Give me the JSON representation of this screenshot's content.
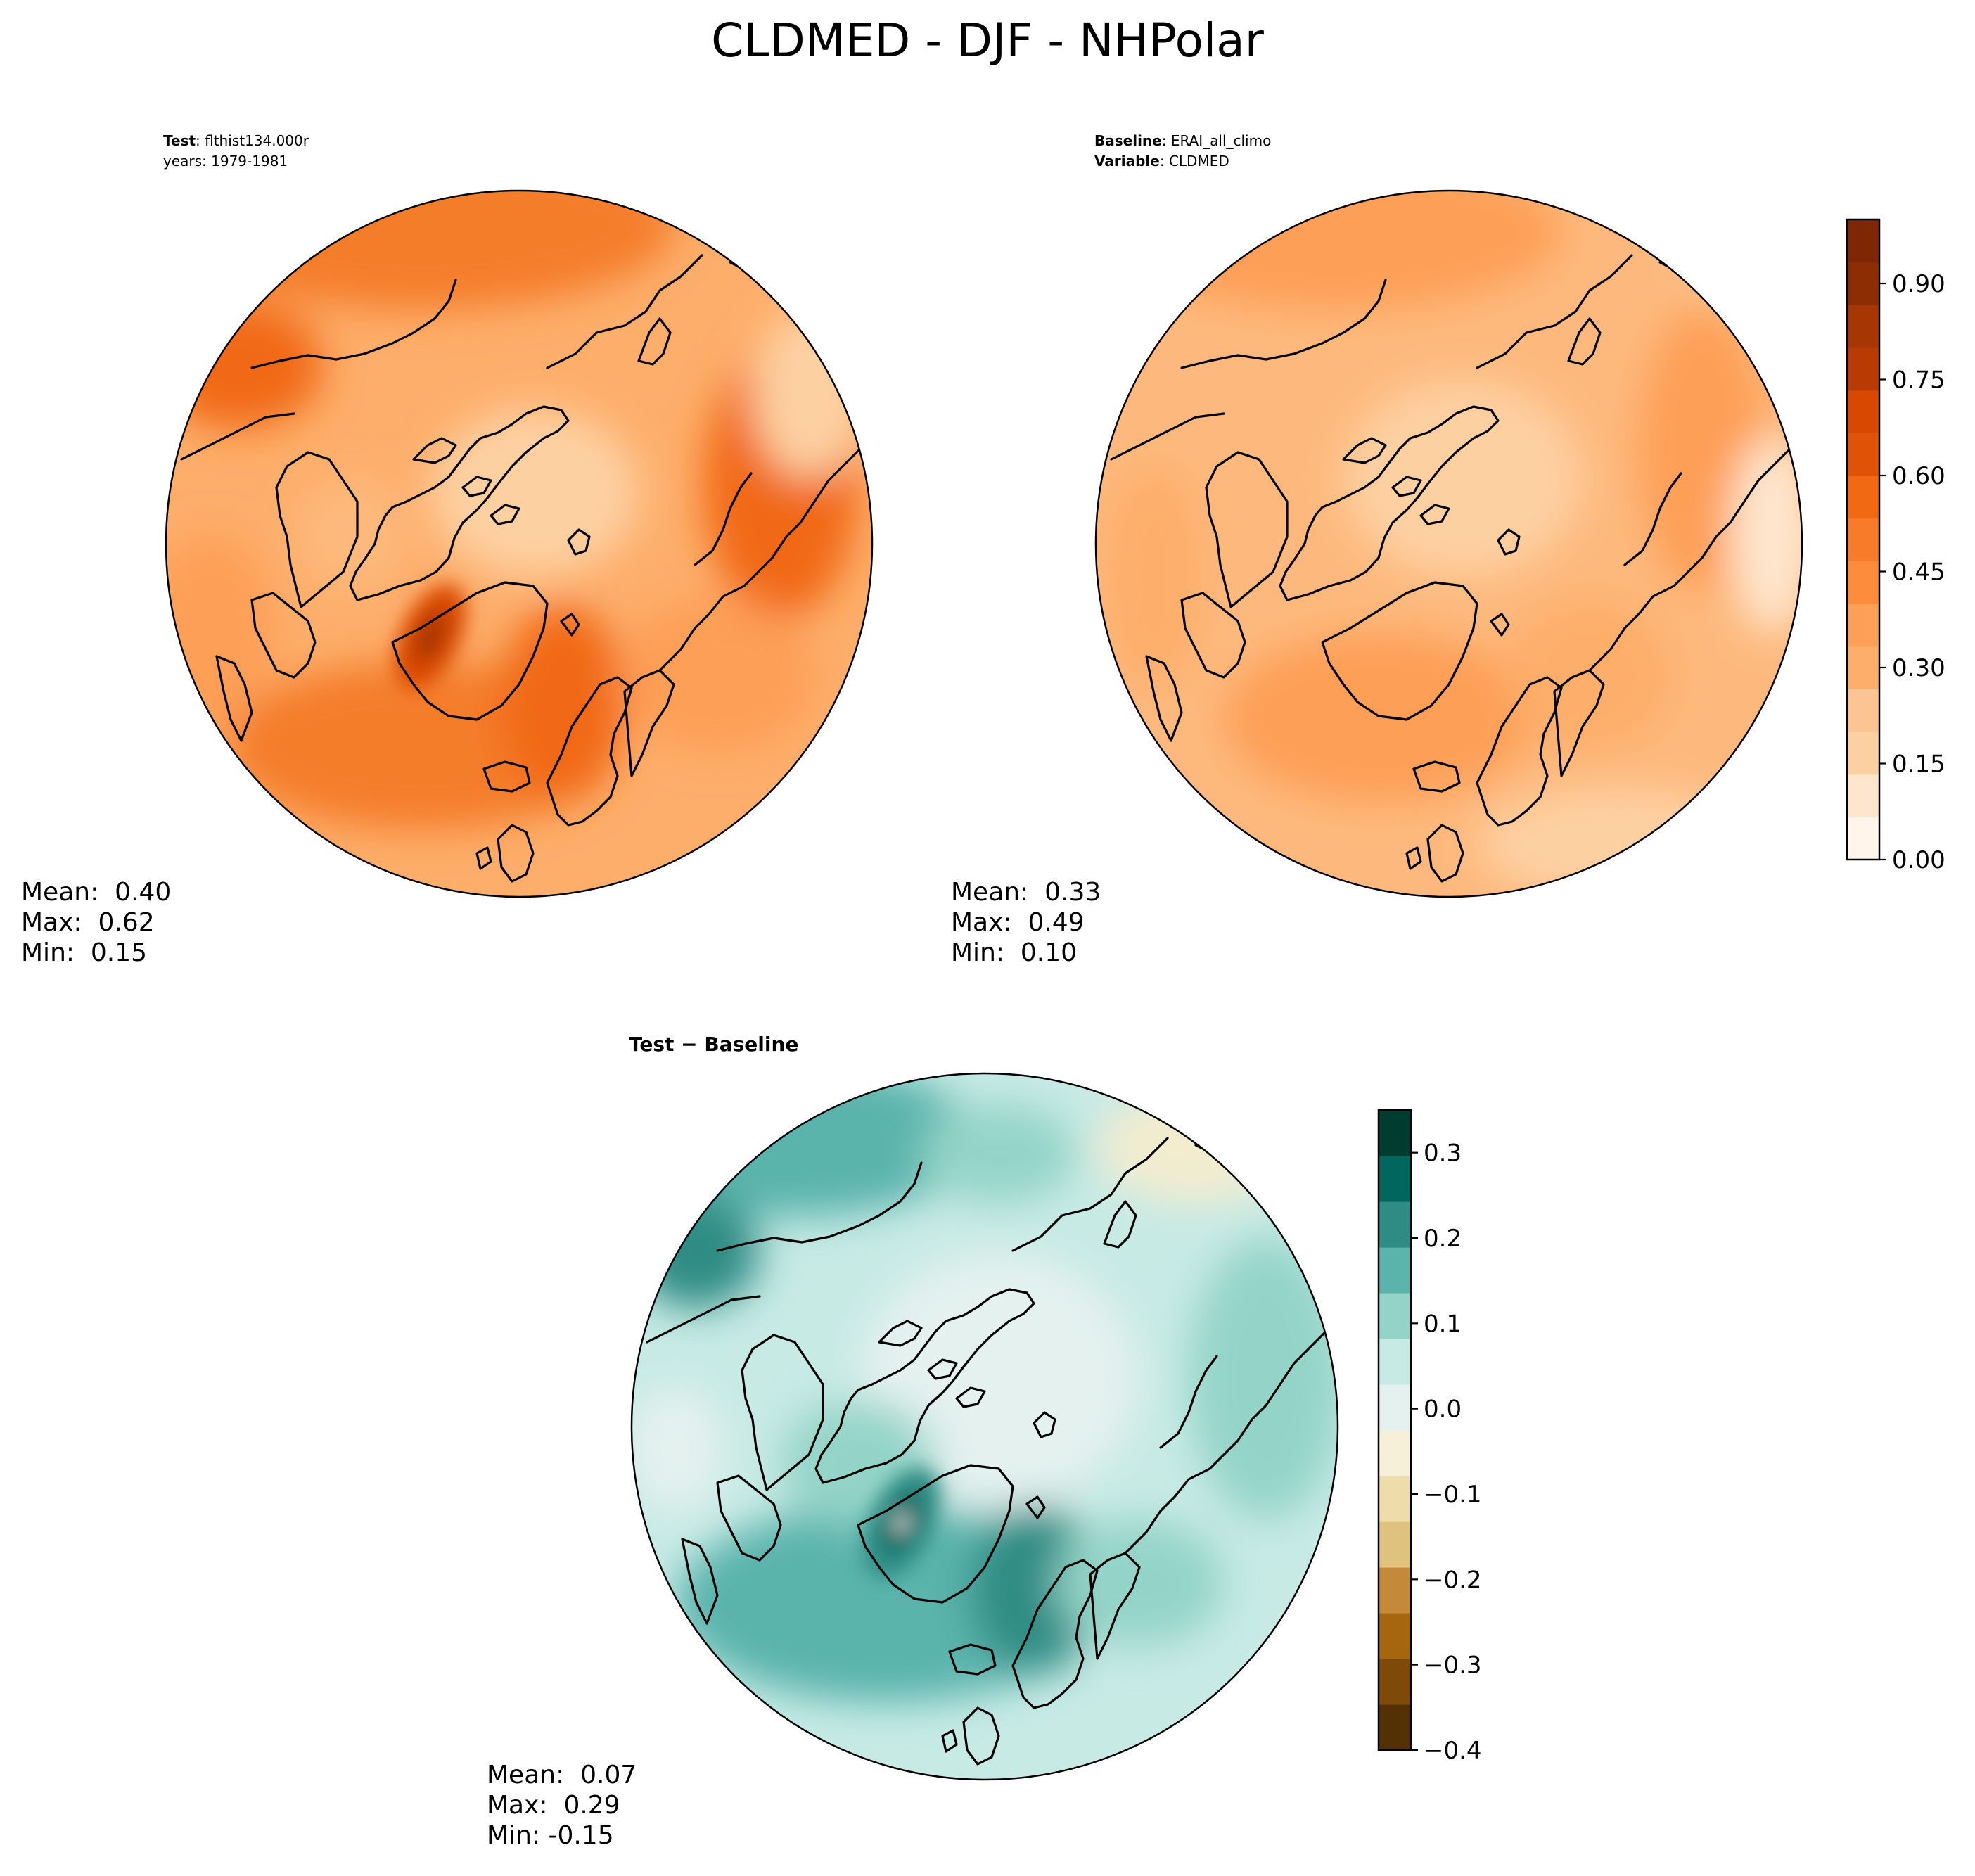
{
  "figure_title": "CLDMED - DJF - NHPolar",
  "colors": {
    "coast": "#000000",
    "oranges": [
      "#fff5eb",
      "#fee6ce",
      "#fdd0a2",
      "#fdc493",
      "#fdae6b",
      "#fd9f56",
      "#fd8d3c",
      "#f87b2a",
      "#f16913",
      "#e05306",
      "#d94801",
      "#b93a02",
      "#a63603",
      "#8c2d04",
      "#7f2704"
    ],
    "brbg": [
      "#543005",
      "#7d4a09",
      "#a6660f",
      "#c48a3a",
      "#dfc27d",
      "#eeddaa",
      "#f6f0d8",
      "#e4f1ef",
      "#c7eae5",
      "#94d4c8",
      "#5ab4ac",
      "#2e8c84",
      "#01665e",
      "#003c30"
    ]
  },
  "chart_data": [
    {
      "type": "heatmap",
      "projection": "north-polar-stereographic",
      "title_lines": [
        {
          "bold": "Test",
          "rest": ": flthist134.000r"
        },
        {
          "bold": "",
          "rest": "years: 1979-1981"
        }
      ],
      "stats": [
        "Mean:  0.40",
        "Max:  0.62",
        "Min:  0.15"
      ],
      "stats_values": {
        "mean": 0.4,
        "max": 0.62,
        "min": 0.15
      },
      "colormap": "Oranges",
      "shared_colorbar_with": "Baseline"
    },
    {
      "type": "heatmap",
      "projection": "north-polar-stereographic",
      "title_lines": [
        {
          "bold": "Baseline",
          "rest": ": ERAI_all_climo"
        },
        {
          "bold": "Variable",
          "rest": ": CLDMED"
        }
      ],
      "stats": [
        "Mean:  0.33",
        "Max:  0.49",
        "Min:  0.10"
      ],
      "stats_values": {
        "mean": 0.33,
        "max": 0.49,
        "min": 0.1
      },
      "colormap": "Oranges",
      "colorbar": {
        "range": [
          0.0,
          1.0
        ],
        "levels": 15,
        "ticks": [
          0.0,
          0.15,
          0.3,
          0.45,
          0.6,
          0.75,
          0.9
        ],
        "tick_labels": [
          "0.00",
          "0.15",
          "0.30",
          "0.45",
          "0.60",
          "0.75",
          "0.90"
        ]
      }
    },
    {
      "type": "heatmap",
      "projection": "north-polar-stereographic",
      "title_lines": [
        {
          "bold": "Test − Baseline",
          "rest": ""
        }
      ],
      "stats": [
        "Mean:  0.07",
        "Max:  0.29",
        "Min: -0.15"
      ],
      "stats_values": {
        "mean": 0.07,
        "max": 0.29,
        "min": -0.15
      },
      "colormap": "BrBG",
      "colorbar": {
        "range": [
          -0.4,
          0.35
        ],
        "levels": 14,
        "ticks": [
          -0.4,
          -0.3,
          -0.2,
          -0.1,
          0.0,
          0.1,
          0.2,
          0.3
        ],
        "tick_labels": [
          "−0.4",
          "−0.3",
          "−0.2",
          "−0.1",
          "0.0",
          "0.1",
          "0.2",
          "0.3"
        ]
      }
    }
  ]
}
